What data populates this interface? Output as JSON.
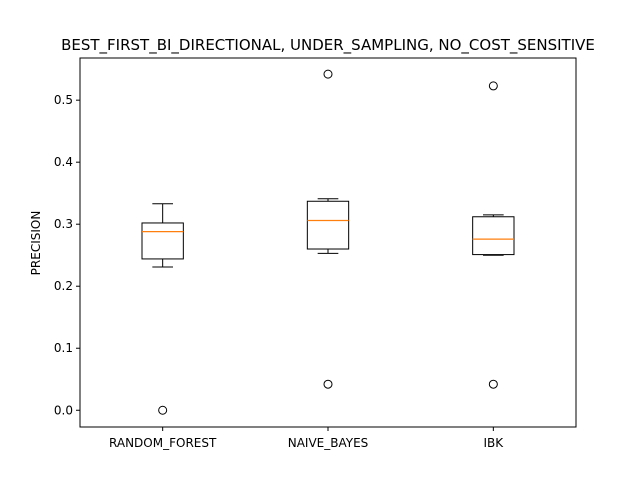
{
  "chart_data": {
    "type": "box",
    "title": "BEST_FIRST_BI_DIRECTIONAL, UNDER_SAMPLING, NO_COST_SENSITIVE",
    "xlabel": "",
    "ylabel": "PRECISION",
    "ylim": [
      -0.027,
      0.568
    ],
    "yticks": [
      0.0,
      0.1,
      0.2,
      0.3,
      0.4,
      0.5
    ],
    "ytick_labels": [
      "0.0",
      "0.1",
      "0.2",
      "0.3",
      "0.4",
      "0.5"
    ],
    "categories": [
      "RANDOM_FOREST",
      "NAIVE_BAYES",
      "IBK"
    ],
    "boxes": [
      {
        "whisker_low": 0.231,
        "q1": 0.244,
        "median": 0.288,
        "q3": 0.302,
        "whisker_high": 0.333,
        "outliers": [
          0.0
        ]
      },
      {
        "whisker_low": 0.253,
        "q1": 0.26,
        "median": 0.306,
        "q3": 0.337,
        "whisker_high": 0.341,
        "outliers": [
          0.542,
          0.042
        ]
      },
      {
        "whisker_low": 0.25,
        "q1": 0.251,
        "median": 0.276,
        "q3": 0.312,
        "whisker_high": 0.315,
        "outliers": [
          0.523,
          0.042
        ]
      }
    ],
    "grid": false,
    "colors": {
      "box": "#000000",
      "median": "#ff7f0e",
      "outlier": "#000000"
    }
  }
}
